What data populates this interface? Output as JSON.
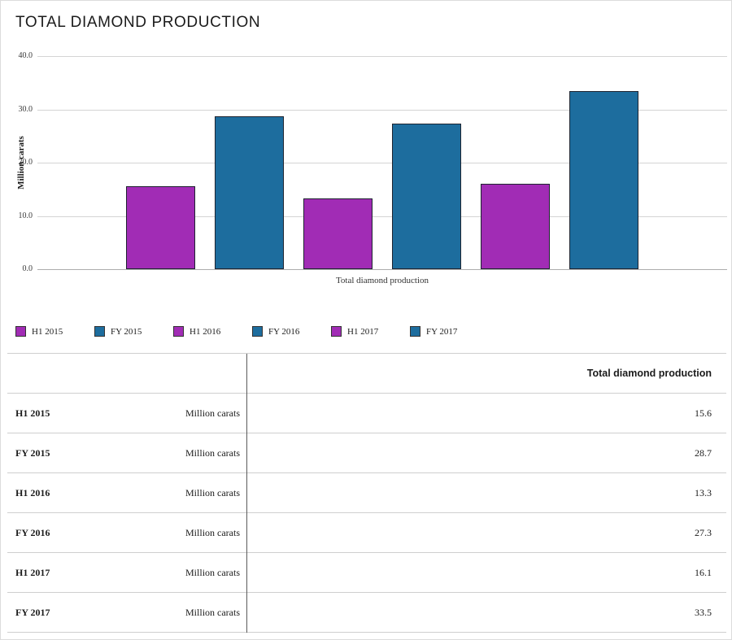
{
  "title": "TOTAL DIAMOND PRODUCTION",
  "chart_data": {
    "type": "bar",
    "title": "TOTAL DIAMOND PRODUCTION",
    "xlabel": "Total diamond production",
    "ylabel": "Million carats",
    "ylim": [
      0,
      40
    ],
    "yticks": [
      0,
      10,
      20,
      30,
      40
    ],
    "ytick_labels": [
      "0.0",
      "10.0",
      "20.0",
      "30.0",
      "40.0"
    ],
    "grid": true,
    "legend_position": "bottom",
    "categories": [
      "Total diamond production"
    ],
    "series": [
      {
        "name": "H1 2015",
        "values": [
          15.6
        ],
        "color": "#A12CB5"
      },
      {
        "name": "FY 2015",
        "values": [
          28.7
        ],
        "color": "#1D6D9E"
      },
      {
        "name": "H1 2016",
        "values": [
          13.3
        ],
        "color": "#A12CB5"
      },
      {
        "name": "FY 2016",
        "values": [
          27.3
        ],
        "color": "#1D6D9E"
      },
      {
        "name": "H1 2017",
        "values": [
          16.1
        ],
        "color": "#A12CB5"
      },
      {
        "name": "FY 2017",
        "values": [
          33.5
        ],
        "color": "#1D6D9E"
      }
    ]
  },
  "table": {
    "value_header": "Total diamond production",
    "rows": [
      {
        "label": "H1 2015",
        "unit": "Million carats",
        "value": "15.6"
      },
      {
        "label": "FY 2015",
        "unit": "Million carats",
        "value": "28.7"
      },
      {
        "label": "H1 2016",
        "unit": "Million carats",
        "value": "13.3"
      },
      {
        "label": "FY 2016",
        "unit": "Million carats",
        "value": "27.3"
      },
      {
        "label": "H1 2017",
        "unit": "Million carats",
        "value": "16.1"
      },
      {
        "label": "FY 2017",
        "unit": "Million carats",
        "value": "33.5"
      }
    ]
  }
}
